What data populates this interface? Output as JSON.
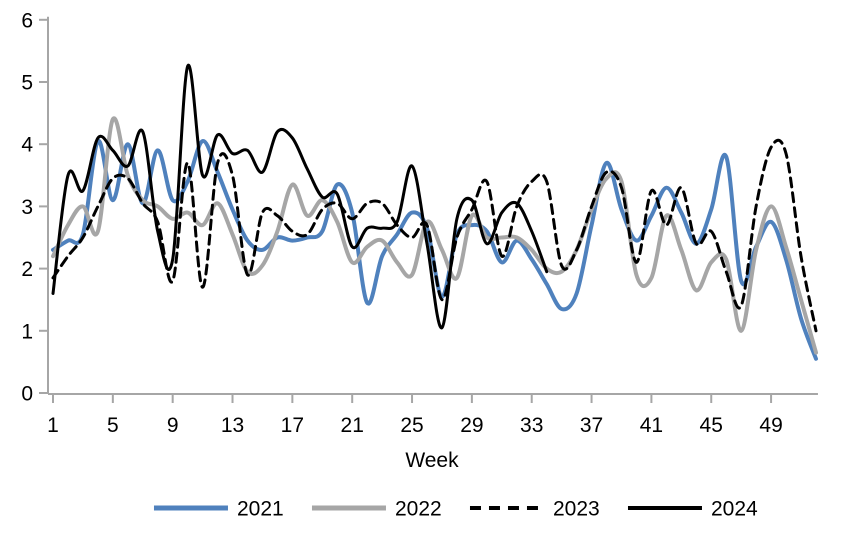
{
  "chart_data": {
    "type": "line",
    "title": "",
    "xlabel": "Week",
    "ylabel": "",
    "xlim": [
      1,
      52
    ],
    "ylim": [
      0,
      6
    ],
    "x_ticks": [
      1,
      5,
      9,
      13,
      17,
      21,
      25,
      29,
      33,
      37,
      41,
      45,
      49
    ],
    "y_ticks": [
      0,
      1,
      2,
      3,
      4,
      5,
      6
    ],
    "grid": false,
    "legend_position": "bottom",
    "axis_color": "#a6a6a6",
    "text_color": "#000000",
    "background_color": "#ffffff",
    "series": [
      {
        "name": "2021",
        "color": "#4f81bd",
        "style": "solid",
        "width": 4,
        "start_week": 1,
        "values": [
          2.3,
          2.45,
          2.55,
          4.05,
          3.1,
          4.0,
          3.05,
          3.9,
          3.1,
          3.4,
          4.05,
          3.55,
          2.95,
          2.45,
          2.3,
          2.5,
          2.45,
          2.5,
          2.6,
          3.35,
          2.9,
          1.45,
          2.2,
          2.55,
          2.9,
          2.65,
          1.55,
          2.55,
          2.7,
          2.6,
          2.1,
          2.45,
          2.15,
          1.75,
          1.35,
          1.6,
          2.7,
          3.7,
          2.95,
          2.45,
          2.85,
          3.3,
          2.9,
          2.4,
          2.95,
          3.8,
          1.8,
          2.35,
          2.75,
          2.15,
          1.2,
          0.55
        ]
      },
      {
        "name": "2022",
        "color": "#a6a6a6",
        "style": "solid",
        "width": 4,
        "start_week": 1,
        "values": [
          2.2,
          2.7,
          3.0,
          2.6,
          4.4,
          3.5,
          3.1,
          3.0,
          2.8,
          2.9,
          2.7,
          3.05,
          2.55,
          1.95,
          2.05,
          2.6,
          3.35,
          2.85,
          3.1,
          2.75,
          2.1,
          2.35,
          2.45,
          2.1,
          1.9,
          2.75,
          2.3,
          1.85,
          2.85,
          2.5,
          2.5,
          2.5,
          2.3,
          2.0,
          1.95,
          2.3,
          2.95,
          3.45,
          3.4,
          1.9,
          1.85,
          2.85,
          2.3,
          1.65,
          2.1,
          2.15,
          1.0,
          2.3,
          3.0,
          2.35,
          1.5,
          0.65
        ]
      },
      {
        "name": "2023",
        "color": "#000000",
        "style": "dashed",
        "width": 3,
        "start_week": 1,
        "values": [
          1.85,
          2.2,
          2.5,
          3.0,
          3.45,
          3.45,
          3.05,
          2.75,
          1.8,
          3.7,
          1.7,
          3.7,
          3.5,
          1.9,
          2.9,
          2.85,
          2.6,
          2.55,
          2.95,
          3.05,
          2.8,
          3.05,
          3.05,
          2.7,
          2.5,
          2.7,
          1.5,
          2.5,
          2.95,
          3.4,
          2.2,
          3.0,
          3.4,
          3.4,
          2.05,
          2.3,
          3.0,
          3.55,
          3.3,
          2.1,
          3.25,
          2.7,
          3.3,
          2.4,
          2.6,
          1.95,
          1.4,
          3.0,
          3.95,
          3.85,
          2.2,
          1.0
        ]
      },
      {
        "name": "2024",
        "color": "#000000",
        "style": "solid",
        "width": 3,
        "start_week": 1,
        "values": [
          1.6,
          3.5,
          3.25,
          4.1,
          3.9,
          3.65,
          4.2,
          2.6,
          2.15,
          5.25,
          3.5,
          4.15,
          3.85,
          3.9,
          3.55,
          4.2,
          4.1,
          3.6,
          3.15,
          3.2,
          2.35,
          2.65,
          2.65,
          2.75,
          3.65,
          2.4,
          1.05,
          2.8,
          3.1,
          2.4,
          2.9,
          3.05,
          2.6,
          1.95
        ]
      }
    ]
  }
}
